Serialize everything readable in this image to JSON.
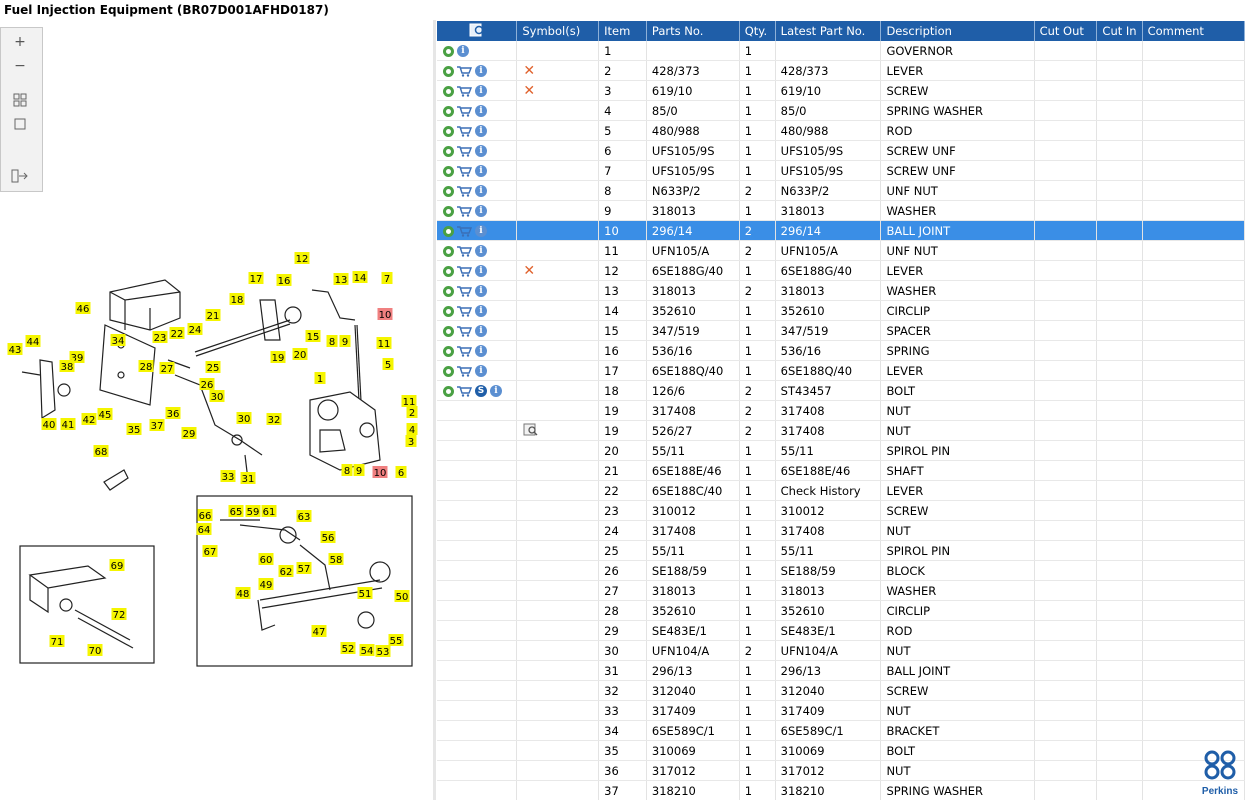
{
  "window": {
    "title": "Fuel Injection Equipment (BR07D001AFHD0187)"
  },
  "toolbar": {
    "zoom_in": "+",
    "zoom_out": "−"
  },
  "brand": {
    "name": "Perkins",
    "color": "#1f5ea8"
  },
  "colors": {
    "header": "#1f5ea8",
    "selected": "#3a8ee6",
    "tag_yellow": "#f5f500",
    "tag_red": "#f08080"
  },
  "grid": {
    "columns": [
      "",
      "Symbol(s)",
      "Item",
      "Parts No.",
      "Qty.",
      "Latest Part No.",
      "Description",
      "Cut Out",
      "Cut In",
      "Comment"
    ],
    "rows": [
      {
        "icons": [
          "gear",
          "info"
        ],
        "symbol": "",
        "item": "1",
        "part": "",
        "qty": "1",
        "latest": "",
        "desc": "GOVERNOR"
      },
      {
        "icons": [
          "gear",
          "cart",
          "info"
        ],
        "symbol": "x",
        "item": "2",
        "part": "428/373",
        "qty": "1",
        "latest": "428/373",
        "desc": "LEVER"
      },
      {
        "icons": [
          "gear",
          "cart",
          "info"
        ],
        "symbol": "x",
        "item": "3",
        "part": "619/10",
        "qty": "1",
        "latest": "619/10",
        "desc": "SCREW"
      },
      {
        "icons": [
          "gear",
          "cart",
          "info"
        ],
        "symbol": "",
        "item": "4",
        "part": "85/0",
        "qty": "1",
        "latest": "85/0",
        "desc": "SPRING WASHER"
      },
      {
        "icons": [
          "gear",
          "cart",
          "info"
        ],
        "symbol": "",
        "item": "5",
        "part": "480/988",
        "qty": "1",
        "latest": "480/988",
        "desc": "ROD"
      },
      {
        "icons": [
          "gear",
          "cart",
          "info"
        ],
        "symbol": "",
        "item": "6",
        "part": "UFS105/9S",
        "qty": "1",
        "latest": "UFS105/9S",
        "desc": "SCREW UNF"
      },
      {
        "icons": [
          "gear",
          "cart",
          "info"
        ],
        "symbol": "",
        "item": "7",
        "part": "UFS105/9S",
        "qty": "1",
        "latest": "UFS105/9S",
        "desc": "SCREW UNF"
      },
      {
        "icons": [
          "gear",
          "cart",
          "info"
        ],
        "symbol": "",
        "item": "8",
        "part": "N633P/2",
        "qty": "2",
        "latest": "N633P/2",
        "desc": "UNF NUT"
      },
      {
        "icons": [
          "gear",
          "cart",
          "info"
        ],
        "symbol": "",
        "item": "9",
        "part": "318013",
        "qty": "1",
        "latest": "318013",
        "desc": "WASHER"
      },
      {
        "icons": [
          "gear",
          "cart",
          "info"
        ],
        "symbol": "",
        "item": "10",
        "part": "296/14",
        "qty": "2",
        "latest": "296/14",
        "desc": "BALL JOINT",
        "selected": true
      },
      {
        "icons": [
          "gear",
          "cart",
          "info"
        ],
        "symbol": "",
        "item": "11",
        "part": "UFN105/A",
        "qty": "2",
        "latest": "UFN105/A",
        "desc": "UNF NUT"
      },
      {
        "icons": [
          "gear",
          "cart",
          "info"
        ],
        "symbol": "x",
        "item": "12",
        "part": "6SE188G/40",
        "qty": "1",
        "latest": "6SE188G/40",
        "desc": "LEVER"
      },
      {
        "icons": [
          "gear",
          "cart",
          "info"
        ],
        "symbol": "",
        "item": "13",
        "part": "318013",
        "qty": "2",
        "latest": "318013",
        "desc": "WASHER"
      },
      {
        "icons": [
          "gear",
          "cart",
          "info"
        ],
        "symbol": "",
        "item": "14",
        "part": "352610",
        "qty": "1",
        "latest": "352610",
        "desc": "CIRCLIP"
      },
      {
        "icons": [
          "gear",
          "cart",
          "info"
        ],
        "symbol": "",
        "item": "15",
        "part": "347/519",
        "qty": "1",
        "latest": "347/519",
        "desc": "SPACER"
      },
      {
        "icons": [
          "gear",
          "cart",
          "info"
        ],
        "symbol": "",
        "item": "16",
        "part": "536/16",
        "qty": "1",
        "latest": "536/16",
        "desc": "SPRING"
      },
      {
        "icons": [
          "gear",
          "cart",
          "info"
        ],
        "symbol": "",
        "item": "17",
        "part": "6SE188Q/40",
        "qty": "1",
        "latest": "6SE188Q/40",
        "desc": "LEVER"
      },
      {
        "icons": [
          "gear",
          "cart",
          "s",
          "info"
        ],
        "symbol": "",
        "item": "18",
        "part": "126/6",
        "qty": "2",
        "latest": "ST43457",
        "desc": "BOLT"
      },
      {
        "icons": [],
        "symbol": "",
        "item": "19",
        "part": "317408",
        "qty": "2",
        "latest": "317408",
        "desc": "NUT"
      },
      {
        "icons": [],
        "symbol": "view",
        "item": "19",
        "part": "526/27",
        "qty": "2",
        "latest": "317408",
        "desc": "NUT"
      },
      {
        "icons": [],
        "symbol": "",
        "item": "20",
        "part": "55/11",
        "qty": "1",
        "latest": "55/11",
        "desc": "SPIROL PIN"
      },
      {
        "icons": [],
        "symbol": "",
        "item": "21",
        "part": "6SE188E/46",
        "qty": "1",
        "latest": "6SE188E/46",
        "desc": "SHAFT"
      },
      {
        "icons": [],
        "symbol": "",
        "item": "22",
        "part": "6SE188C/40",
        "qty": "1",
        "latest": "Check History",
        "desc": "LEVER"
      },
      {
        "icons": [],
        "symbol": "",
        "item": "23",
        "part": "310012",
        "qty": "1",
        "latest": "310012",
        "desc": "SCREW"
      },
      {
        "icons": [],
        "symbol": "",
        "item": "24",
        "part": "317408",
        "qty": "1",
        "latest": "317408",
        "desc": "NUT"
      },
      {
        "icons": [],
        "symbol": "",
        "item": "25",
        "part": "55/11",
        "qty": "1",
        "latest": "55/11",
        "desc": "SPIROL PIN"
      },
      {
        "icons": [],
        "symbol": "",
        "item": "26",
        "part": "SE188/59",
        "qty": "1",
        "latest": "SE188/59",
        "desc": "BLOCK"
      },
      {
        "icons": [],
        "symbol": "",
        "item": "27",
        "part": "318013",
        "qty": "1",
        "latest": "318013",
        "desc": "WASHER"
      },
      {
        "icons": [],
        "symbol": "",
        "item": "28",
        "part": "352610",
        "qty": "1",
        "latest": "352610",
        "desc": "CIRCLIP"
      },
      {
        "icons": [],
        "symbol": "",
        "item": "29",
        "part": "SE483E/1",
        "qty": "1",
        "latest": "SE483E/1",
        "desc": "ROD"
      },
      {
        "icons": [],
        "symbol": "",
        "item": "30",
        "part": "UFN104/A",
        "qty": "2",
        "latest": "UFN104/A",
        "desc": "NUT"
      },
      {
        "icons": [],
        "symbol": "",
        "item": "31",
        "part": "296/13",
        "qty": "1",
        "latest": "296/13",
        "desc": "BALL JOINT"
      },
      {
        "icons": [],
        "symbol": "",
        "item": "32",
        "part": "312040",
        "qty": "1",
        "latest": "312040",
        "desc": "SCREW"
      },
      {
        "icons": [],
        "symbol": "",
        "item": "33",
        "part": "317409",
        "qty": "1",
        "latest": "317409",
        "desc": "NUT"
      },
      {
        "icons": [],
        "symbol": "",
        "item": "34",
        "part": "6SE589C/1",
        "qty": "1",
        "latest": "6SE589C/1",
        "desc": "BRACKET"
      },
      {
        "icons": [],
        "symbol": "",
        "item": "35",
        "part": "310069",
        "qty": "1",
        "latest": "310069",
        "desc": "BOLT"
      },
      {
        "icons": [],
        "symbol": "",
        "item": "36",
        "part": "317012",
        "qty": "1",
        "latest": "317012",
        "desc": "NUT"
      },
      {
        "icons": [],
        "symbol": "",
        "item": "37",
        "part": "318210",
        "qty": "1",
        "latest": "318210",
        "desc": "SPRING WASHER"
      }
    ]
  },
  "diagram": {
    "tags": [
      {
        "n": "12"
      },
      {
        "n": "17"
      },
      {
        "n": "16"
      },
      {
        "n": "13"
      },
      {
        "n": "14"
      },
      {
        "n": "7"
      },
      {
        "n": "18"
      },
      {
        "n": "15"
      },
      {
        "n": "8"
      },
      {
        "n": "9"
      },
      {
        "n": "10",
        "red": true
      },
      {
        "n": "11"
      },
      {
        "n": "19"
      },
      {
        "n": "20"
      },
      {
        "n": "46"
      },
      {
        "n": "21"
      },
      {
        "n": "22"
      },
      {
        "n": "24"
      },
      {
        "n": "23"
      },
      {
        "n": "34"
      },
      {
        "n": "5"
      },
      {
        "n": "44"
      },
      {
        "n": "43"
      },
      {
        "n": "39"
      },
      {
        "n": "38"
      },
      {
        "n": "28"
      },
      {
        "n": "27"
      },
      {
        "n": "25"
      },
      {
        "n": "26"
      },
      {
        "n": "1"
      },
      {
        "n": "30"
      },
      {
        "n": "11"
      },
      {
        "n": "2"
      },
      {
        "n": "4"
      },
      {
        "n": "3"
      },
      {
        "n": "42"
      },
      {
        "n": "45"
      },
      {
        "n": "40"
      },
      {
        "n": "41"
      },
      {
        "n": "35"
      },
      {
        "n": "37"
      },
      {
        "n": "36"
      },
      {
        "n": "29"
      },
      {
        "n": "30"
      },
      {
        "n": "32"
      },
      {
        "n": "68"
      },
      {
        "n": "8"
      },
      {
        "n": "9"
      },
      {
        "n": "10",
        "red": true
      },
      {
        "n": "6"
      },
      {
        "n": "33"
      },
      {
        "n": "31"
      },
      {
        "n": "66"
      },
      {
        "n": "65"
      },
      {
        "n": "59"
      },
      {
        "n": "61"
      },
      {
        "n": "63"
      },
      {
        "n": "64"
      },
      {
        "n": "56"
      },
      {
        "n": "67"
      },
      {
        "n": "60"
      },
      {
        "n": "62"
      },
      {
        "n": "58"
      },
      {
        "n": "57"
      },
      {
        "n": "69"
      },
      {
        "n": "49"
      },
      {
        "n": "48"
      },
      {
        "n": "51"
      },
      {
        "n": "50"
      },
      {
        "n": "72"
      },
      {
        "n": "47"
      },
      {
        "n": "71"
      },
      {
        "n": "70"
      },
      {
        "n": "55"
      },
      {
        "n": "52"
      },
      {
        "n": "54"
      },
      {
        "n": "53"
      }
    ]
  }
}
